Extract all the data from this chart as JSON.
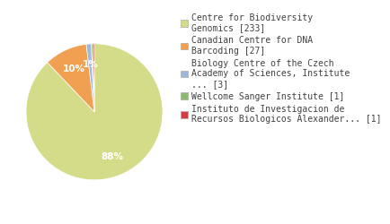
{
  "labels": [
    "Centre for Biodiversity\nGenomics [233]",
    "Canadian Centre for DNA\nBarcoding [27]",
    "Biology Centre of the Czech\nAcademy of Sciences, Institute\n... [3]",
    "Wellcome Sanger Institute [1]",
    "Instituto de Investigacion de\nRecursos Biologicos Alexander... [1]"
  ],
  "values": [
    233,
    27,
    3,
    1,
    1
  ],
  "colors": [
    "#d4dc8a",
    "#f0a050",
    "#a0b8d8",
    "#8db870",
    "#d04040"
  ],
  "startangle": 90,
  "background_color": "#ffffff",
  "text_color": "#404040",
  "pie_fontsize": 7.5,
  "legend_fontsize": 7.0
}
